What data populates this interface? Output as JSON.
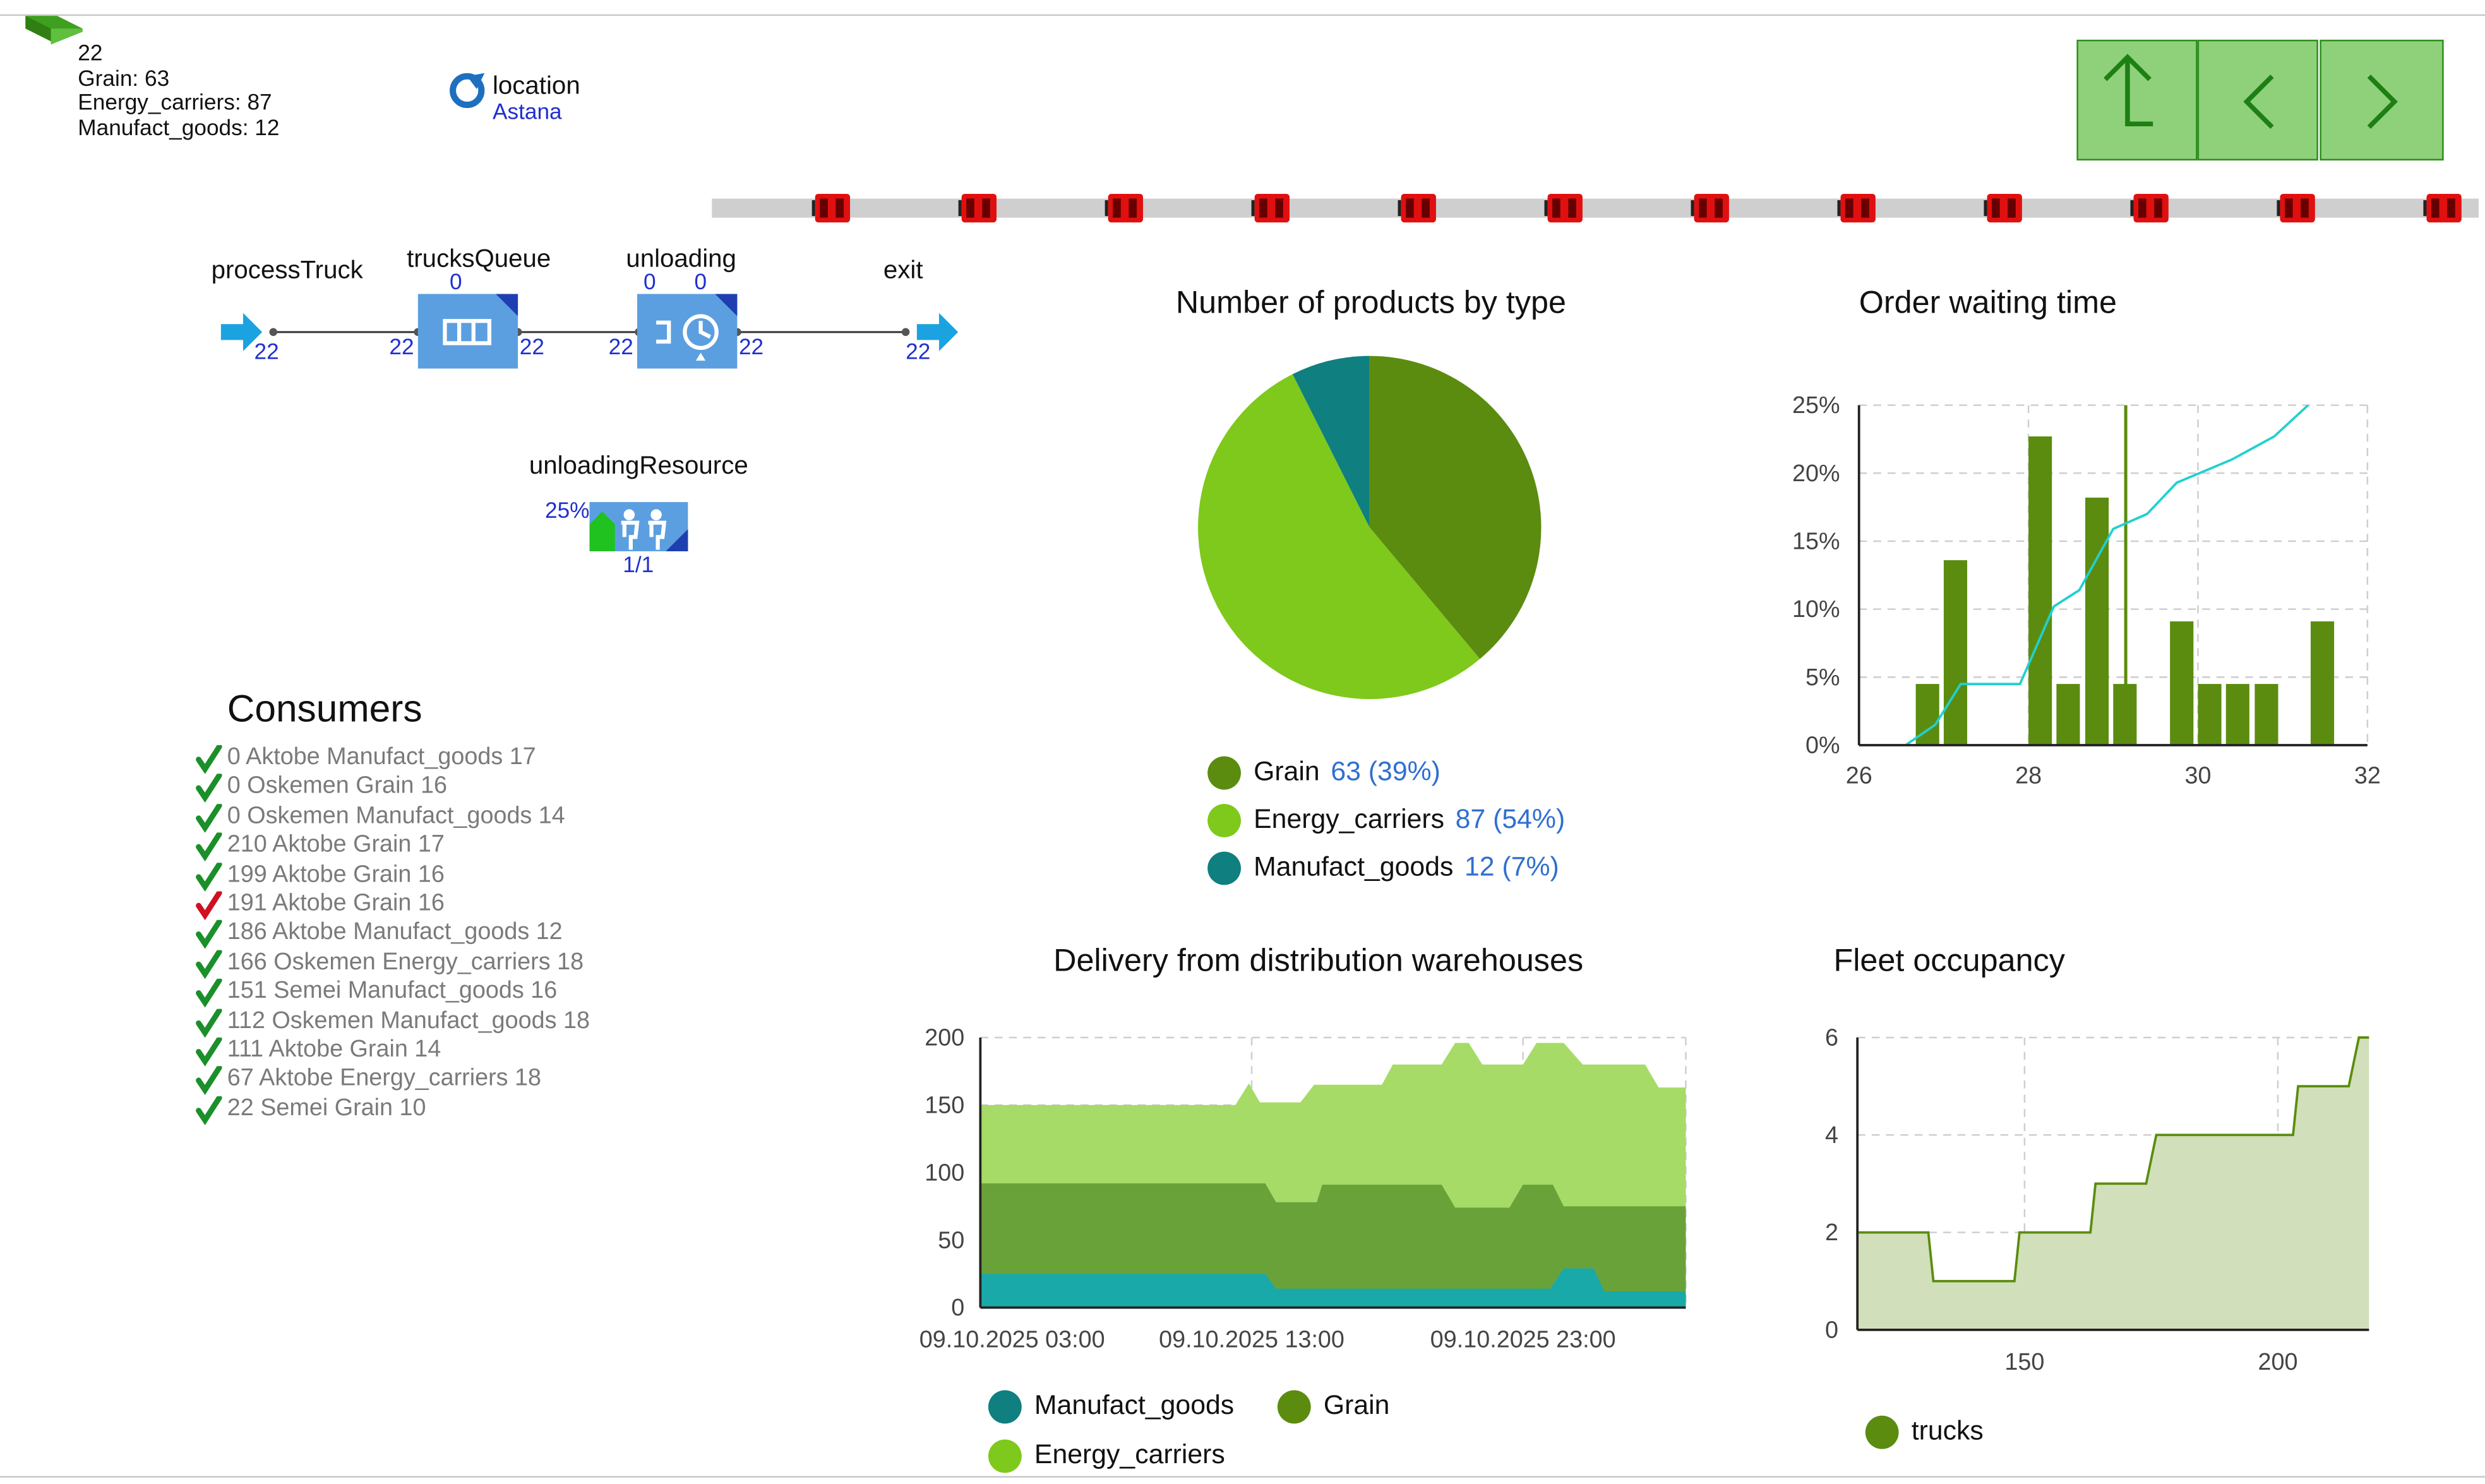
{
  "header": {
    "count": "22",
    "grain": "Grain: 63",
    "energy": "Energy_carriers: 87",
    "manufact": "Manufact_goods: 12"
  },
  "location": {
    "label": "location",
    "city": "Astana"
  },
  "nav": {
    "up": "up-arrow",
    "back": "chevron-left",
    "forward": "chevron-right"
  },
  "process": {
    "source_label": "processTruck",
    "source_out": "22",
    "queue_label": "trucksQueue",
    "queue_top": "0",
    "queue_in": "22",
    "queue_out": "22",
    "unload_label": "unloading",
    "unload_top1": "0",
    "unload_top2": "0",
    "unload_in": "22",
    "unload_out": "22",
    "exit_label": "exit",
    "exit_in": "22",
    "resource_label": "unloadingResource",
    "resource_pct": "25%",
    "resource_count": "1/1"
  },
  "consumers": {
    "title": "Consumers",
    "items": [
      {
        "text": "0 Aktobe Manufact_goods 17",
        "ok": true
      },
      {
        "text": "0 Oskemen Grain 16",
        "ok": true
      },
      {
        "text": "0 Oskemen Manufact_goods 14",
        "ok": true
      },
      {
        "text": "210 Aktobe Grain 17",
        "ok": true
      },
      {
        "text": "199 Aktobe Grain 16",
        "ok": true
      },
      {
        "text": "191 Aktobe Grain 16",
        "ok": false
      },
      {
        "text": "186 Aktobe Manufact_goods 12",
        "ok": true
      },
      {
        "text": "166 Oskemen Energy_carriers 18",
        "ok": true
      },
      {
        "text": "151 Semei Manufact_goods 16",
        "ok": true
      },
      {
        "text": "112 Oskemen Manufact_goods 18",
        "ok": true
      },
      {
        "text": "111 Aktobe Grain 14",
        "ok": true
      },
      {
        "text": "67 Aktobe Energy_carriers 18",
        "ok": true
      },
      {
        "text": "22 Semei Grain 10",
        "ok": true
      }
    ]
  },
  "colors": {
    "grain": "#5b8c0f",
    "energy": "#7ec91b",
    "manufact": "#0f7f7f",
    "teal_area": "#1aa9a9",
    "cyan_line": "#20d0d0",
    "truck_red": "#e01010"
  },
  "chart_data": [
    {
      "type": "pie",
      "title": "Number of products by type",
      "slices": [
        {
          "label": "Grain",
          "value": 63,
          "pct": "63 (39%)",
          "color": "#5b8c0f"
        },
        {
          "label": "Energy_carriers",
          "value": 87,
          "pct": "87 (54%)",
          "color": "#7ec91b"
        },
        {
          "label": "Manufact_goods",
          "value": 12,
          "pct": "12 (7%)",
          "color": "#0f7f7f"
        }
      ]
    },
    {
      "type": "bar",
      "title": "Order waiting time",
      "xlim": [
        26,
        32
      ],
      "ylim": [
        0,
        25
      ],
      "xticks": [
        "26",
        "28",
        "30",
        "32"
      ],
      "yticks": [
        "0%",
        "5%",
        "10%",
        "15%",
        "20%",
        "25%"
      ],
      "bin_width": 0.333,
      "bars": [
        {
          "x": 26.67,
          "y": 4.5
        },
        {
          "x": 27.0,
          "y": 13.6
        },
        {
          "x": 28.0,
          "y": 22.7
        },
        {
          "x": 28.33,
          "y": 4.5
        },
        {
          "x": 28.67,
          "y": 18.2
        },
        {
          "x": 29.0,
          "y": 4.5
        },
        {
          "x": 29.67,
          "y": 9.1
        },
        {
          "x": 30.0,
          "y": 4.5
        },
        {
          "x": 30.33,
          "y": 4.5
        },
        {
          "x": 30.67,
          "y": 4.5
        },
        {
          "x": 31.33,
          "y": 9.1
        }
      ],
      "mean_marker": {
        "x": 29.0,
        "ylim_top": 25
      },
      "cdf": [
        [
          26.55,
          0
        ],
        [
          26.9,
          1.5
        ],
        [
          27.2,
          4.5
        ],
        [
          27.9,
          4.5
        ],
        [
          28.3,
          10.2
        ],
        [
          28.6,
          11.4
        ],
        [
          29.0,
          15.9
        ],
        [
          29.4,
          17.0
        ],
        [
          29.75,
          19.3
        ],
        [
          30.4,
          21.0
        ],
        [
          30.9,
          22.7
        ],
        [
          31.3,
          25.0
        ]
      ]
    },
    {
      "type": "area",
      "title": "Delivery from distribution warehouses",
      "ylim": [
        0,
        200
      ],
      "yticks": [
        "0",
        "50",
        "100",
        "150",
        "200"
      ],
      "xticks": [
        "09.10.2025 03:00",
        "09.10.2025 13:00",
        "09.10.2025 23:00"
      ],
      "xlim": [
        0,
        26
      ],
      "series": [
        {
          "name": "Manufact_goods",
          "color": "#1aa9a9",
          "points": [
            [
              0,
              25
            ],
            [
              10.5,
              25
            ],
            [
              10.9,
              14
            ],
            [
              21,
              14
            ],
            [
              21.5,
              29
            ],
            [
              22.6,
              29
            ],
            [
              23,
              12
            ],
            [
              26,
              12
            ]
          ]
        },
        {
          "name": "Grain",
          "color": "#6aa23a",
          "points": [
            [
              0,
              92
            ],
            [
              10.5,
              92
            ],
            [
              10.9,
              78
            ],
            [
              12.4,
              78
            ],
            [
              12.6,
              91
            ],
            [
              17,
              91
            ],
            [
              17.5,
              74
            ],
            [
              19.5,
              74
            ],
            [
              20.0,
              91
            ],
            [
              21.1,
              91
            ],
            [
              21.5,
              75
            ],
            [
              26,
              75
            ]
          ]
        },
        {
          "name": "Energy_carriers",
          "color": "#a6db67",
          "points": [
            [
              0,
              150
            ],
            [
              9.4,
              150
            ],
            [
              9.9,
              166
            ],
            [
              10.3,
              152
            ],
            [
              11.8,
              152
            ],
            [
              12.3,
              165
            ],
            [
              14.8,
              165
            ],
            [
              15.2,
              180
            ],
            [
              17,
              180
            ],
            [
              17.5,
              196
            ],
            [
              18.0,
              196
            ],
            [
              18.5,
              180
            ],
            [
              20.0,
              180
            ],
            [
              20.5,
              196
            ],
            [
              21.5,
              196
            ],
            [
              22.2,
              180
            ],
            [
              24.5,
              180
            ],
            [
              25.0,
              163
            ],
            [
              26,
              163
            ]
          ]
        }
      ],
      "legend": [
        "Manufact_goods",
        "Grain",
        "Energy_carriers"
      ]
    },
    {
      "type": "area",
      "title": "Fleet occupancy",
      "ylim": [
        0,
        6
      ],
      "xlim": [
        117,
        218
      ],
      "yticks": [
        "0",
        "2",
        "4",
        "6"
      ],
      "xticks": [
        "150",
        "200"
      ],
      "series": [
        {
          "name": "trucks",
          "color": "#5b8c0f",
          "points": [
            [
              117,
              2
            ],
            [
              131,
              2
            ],
            [
              132,
              1
            ],
            [
              148,
              1
            ],
            [
              149,
              2
            ],
            [
              163,
              2
            ],
            [
              164,
              3
            ],
            [
              174,
              3
            ],
            [
              176,
              4
            ],
            [
              203,
              4
            ],
            [
              204,
              5
            ],
            [
              214,
              5
            ],
            [
              216,
              6
            ],
            [
              218,
              6
            ]
          ]
        }
      ]
    }
  ]
}
